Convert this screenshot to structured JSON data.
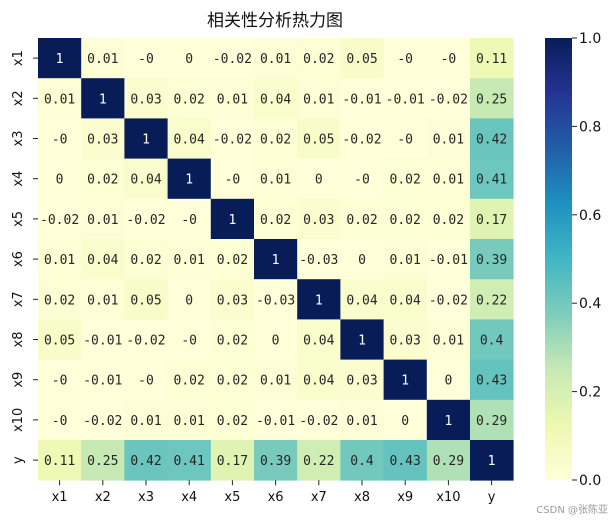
{
  "chart_data": {
    "type": "heatmap",
    "title": "相关性分析热力图",
    "x_labels": [
      "x1",
      "x2",
      "x3",
      "x4",
      "x5",
      "x6",
      "x7",
      "x8",
      "x9",
      "x10",
      "y"
    ],
    "y_labels": [
      "x1",
      "x2",
      "x3",
      "x4",
      "x5",
      "x6",
      "x7",
      "x8",
      "x9",
      "x10",
      "y"
    ],
    "values": [
      [
        1,
        0.01,
        -0.0,
        0,
        -0.02,
        0.01,
        0.02,
        0.05,
        -0.0,
        -0.0,
        0.11
      ],
      [
        0.01,
        1,
        0.03,
        0.02,
        0.01,
        0.04,
        0.01,
        -0.01,
        -0.01,
        -0.02,
        0.25
      ],
      [
        -0.0,
        0.03,
        1,
        0.04,
        -0.02,
        0.02,
        0.05,
        -0.02,
        -0.0,
        0.01,
        0.42
      ],
      [
        0,
        0.02,
        0.04,
        1,
        -0.0,
        0.01,
        0,
        -0.0,
        0.02,
        0.01,
        0.41
      ],
      [
        -0.02,
        0.01,
        -0.02,
        -0.0,
        1,
        0.02,
        0.03,
        0.02,
        0.02,
        0.02,
        0.17
      ],
      [
        0.01,
        0.04,
        0.02,
        0.01,
        0.02,
        1,
        -0.03,
        0,
        0.01,
        -0.01,
        0.39
      ],
      [
        0.02,
        0.01,
        0.05,
        0,
        0.03,
        -0.03,
        1,
        0.04,
        0.04,
        -0.02,
        0.22
      ],
      [
        0.05,
        -0.01,
        -0.02,
        -0.0,
        0.02,
        0,
        0.04,
        1,
        0.03,
        0.01,
        0.4
      ],
      [
        -0.0,
        -0.01,
        -0.0,
        0.02,
        0.02,
        0.01,
        0.04,
        0.03,
        1,
        0,
        0.43
      ],
      [
        -0.0,
        -0.02,
        0.01,
        0.01,
        0.02,
        -0.01,
        -0.02,
        0.01,
        0,
        1,
        0.29
      ],
      [
        0.11,
        0.25,
        0.42,
        0.41,
        0.17,
        0.39,
        0.22,
        0.4,
        0.43,
        0.29,
        1
      ]
    ],
    "cell_text": [
      [
        "1",
        "0.01",
        "-0",
        "0",
        "-0.02",
        "0.01",
        "0.02",
        "0.05",
        "-0",
        "-0",
        "0.11"
      ],
      [
        "0.01",
        "1",
        "0.03",
        "0.02",
        "0.01",
        "0.04",
        "0.01",
        "-0.01",
        "-0.01",
        "-0.02",
        "0.25"
      ],
      [
        "-0",
        "0.03",
        "1",
        "0.04",
        "-0.02",
        "0.02",
        "0.05",
        "-0.02",
        "-0",
        "0.01",
        "0.42"
      ],
      [
        "0",
        "0.02",
        "0.04",
        "1",
        "-0",
        "0.01",
        "0",
        "-0",
        "0.02",
        "0.01",
        "0.41"
      ],
      [
        "-0.02",
        "0.01",
        "-0.02",
        "-0",
        "1",
        "0.02",
        "0.03",
        "0.02",
        "0.02",
        "0.02",
        "0.17"
      ],
      [
        "0.01",
        "0.04",
        "0.02",
        "0.01",
        "0.02",
        "1",
        "-0.03",
        "0",
        "0.01",
        "-0.01",
        "0.39"
      ],
      [
        "0.02",
        "0.01",
        "0.05",
        "0",
        "0.03",
        "-0.03",
        "1",
        "0.04",
        "0.04",
        "-0.02",
        "0.22"
      ],
      [
        "0.05",
        "-0.01",
        "-0.02",
        "-0",
        "0.02",
        "0",
        "0.04",
        "1",
        "0.03",
        "0.01",
        "0.4"
      ],
      [
        "-0",
        "-0.01",
        "-0",
        "0.02",
        "0.02",
        "0.01",
        "0.04",
        "0.03",
        "1",
        "0",
        "0.43"
      ],
      [
        "-0",
        "-0.02",
        "0.01",
        "0.01",
        "0.02",
        "-0.01",
        "-0.02",
        "0.01",
        "0",
        "1",
        "0.29"
      ],
      [
        "0.11",
        "0.25",
        "0.42",
        "0.41",
        "0.17",
        "0.39",
        "0.22",
        "0.4",
        "0.43",
        "0.29",
        "1"
      ]
    ],
    "colormap": "YlGnBu",
    "vmin": 0,
    "vmax": 1,
    "colorbar_ticks": [
      "0.0",
      "0.2",
      "0.4",
      "0.6",
      "0.8",
      "1.0"
    ],
    "colorbar_tick_values": [
      0,
      0.2,
      0.4,
      0.6,
      0.8,
      1.0
    ]
  },
  "watermark": "CSDN @张陈亚"
}
